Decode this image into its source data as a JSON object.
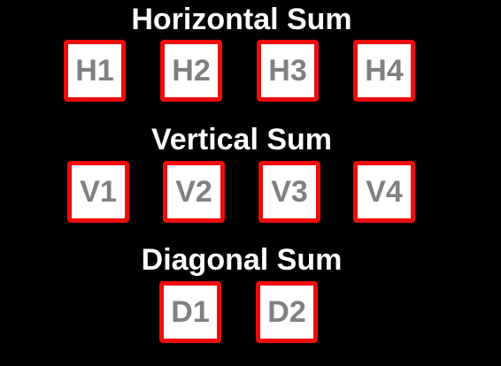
{
  "sections": {
    "horizontal": {
      "title": "Horizontal Sum",
      "cells": [
        "H1",
        "H2",
        "H3",
        "H4"
      ]
    },
    "vertical": {
      "title": "Vertical Sum",
      "cells": [
        "V1",
        "V2",
        "V3",
        "V4"
      ]
    },
    "diagonal": {
      "title": "Diagonal Sum",
      "cells": [
        "D1",
        "D2"
      ]
    }
  },
  "colors": {
    "background": "#000000",
    "title_text": "#ffffff",
    "cell_border": "#ee0c0c",
    "cell_fill": "#ffffff",
    "cell_text": "#808080"
  }
}
